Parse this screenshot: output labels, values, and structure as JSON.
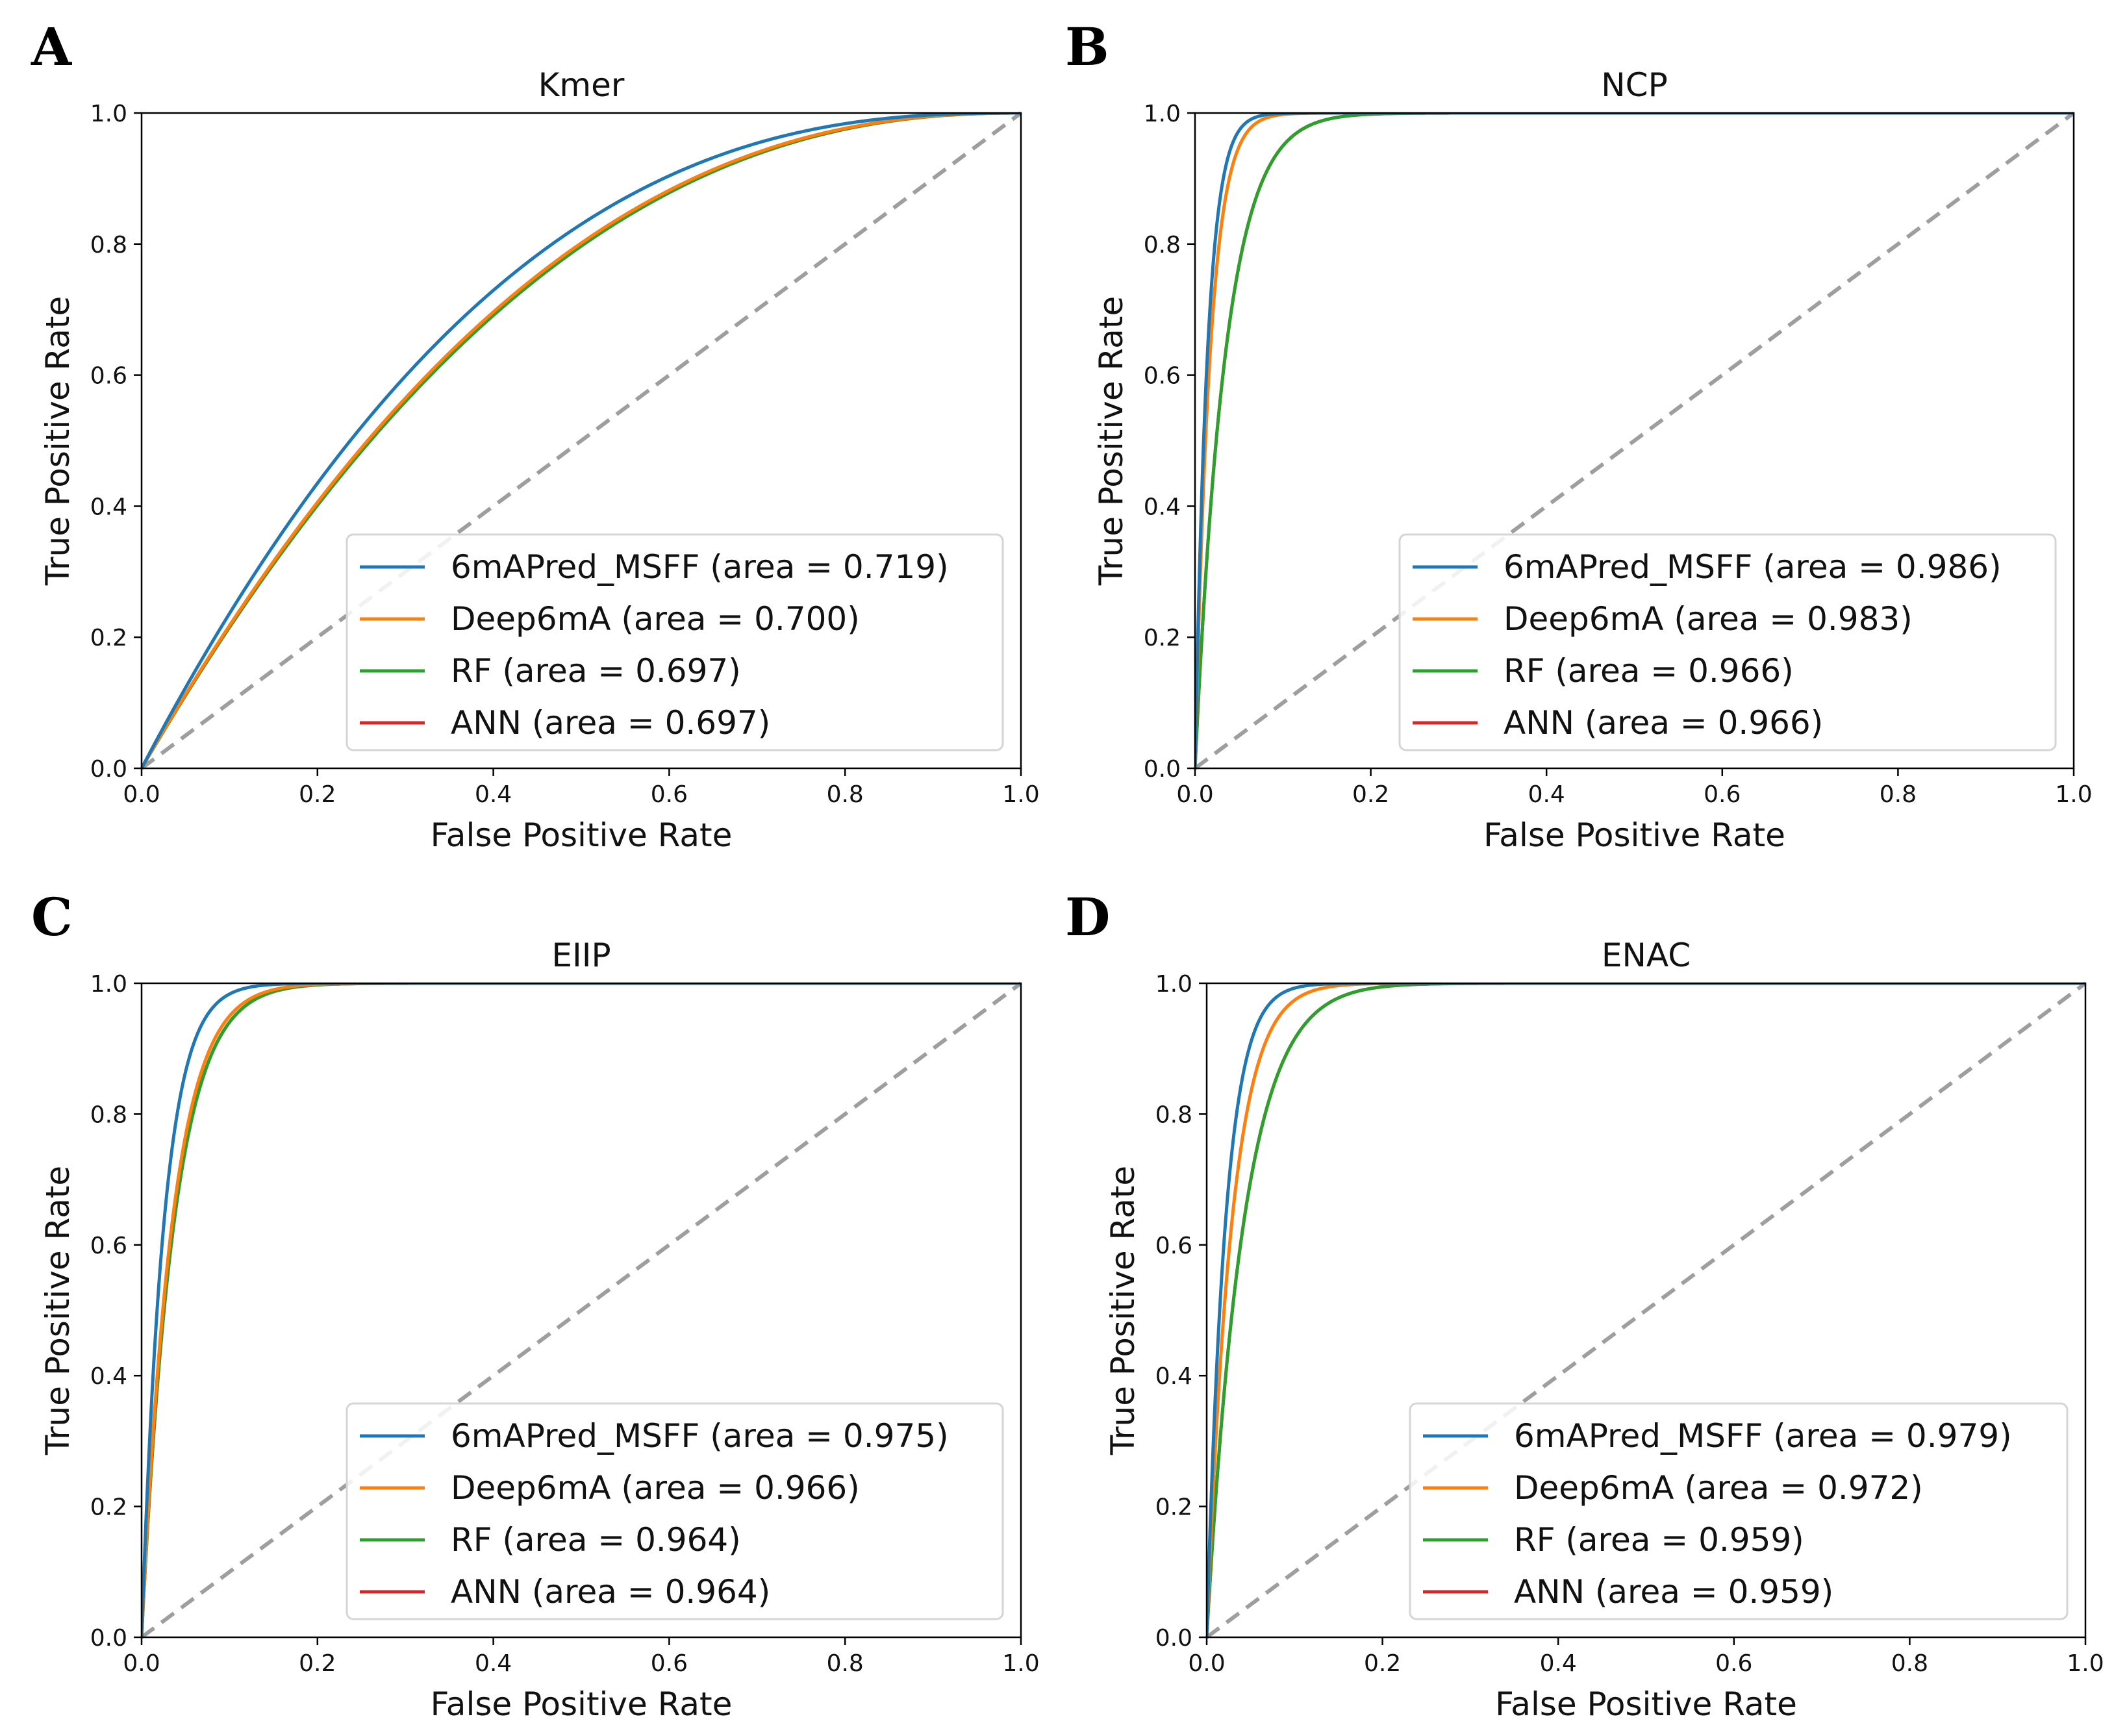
{
  "chart_data": [
    {
      "type": "line",
      "panel": "A",
      "title": "Kmer",
      "xlabel": "False Positive Rate",
      "ylabel": "True Positive Rate",
      "xlim": [
        0.0,
        1.0
      ],
      "ylim": [
        0.0,
        1.0
      ],
      "xticks": [
        "0.0",
        "0.2",
        "0.4",
        "0.6",
        "0.8",
        "1.0"
      ],
      "yticks": [
        "0.0",
        "0.2",
        "0.4",
        "0.6",
        "0.8",
        "1.0"
      ],
      "legend_position": "lower-right",
      "diagonal": true,
      "series": [
        {
          "name": "6mAPred_MSFF (area = 0.719)",
          "auc": 0.719,
          "color": "#1f77b4"
        },
        {
          "name": "Deep6mA (area = 0.700)",
          "auc": 0.7,
          "color": "#ff7f0e"
        },
        {
          "name": "RF (area = 0.697)",
          "auc": 0.697,
          "color": "#2ca02c"
        },
        {
          "name": "ANN (area = 0.697)",
          "auc": 0.697,
          "color": "#d62728"
        }
      ]
    },
    {
      "type": "line",
      "panel": "B",
      "title": "NCP",
      "xlabel": "False Positive Rate",
      "ylabel": "True Positive Rate",
      "xlim": [
        0.0,
        1.0
      ],
      "ylim": [
        0.0,
        1.0
      ],
      "xticks": [
        "0.0",
        "0.2",
        "0.4",
        "0.6",
        "0.8",
        "1.0"
      ],
      "yticks": [
        "0.0",
        "0.2",
        "0.4",
        "0.6",
        "0.8",
        "1.0"
      ],
      "legend_position": "lower-right",
      "diagonal": true,
      "series": [
        {
          "name": "6mAPred_MSFF (area = 0.986)",
          "auc": 0.986,
          "color": "#1f77b4"
        },
        {
          "name": "Deep6mA (area = 0.983)",
          "auc": 0.983,
          "color": "#ff7f0e"
        },
        {
          "name": "RF (area = 0.966)",
          "auc": 0.966,
          "color": "#2ca02c"
        },
        {
          "name": "ANN (area = 0.966)",
          "auc": 0.966,
          "color": "#d62728"
        }
      ]
    },
    {
      "type": "line",
      "panel": "C",
      "title": "EIIP",
      "xlabel": "False Positive Rate",
      "ylabel": "True Positive Rate",
      "xlim": [
        0.0,
        1.0
      ],
      "ylim": [
        0.0,
        1.0
      ],
      "xticks": [
        "0.0",
        "0.2",
        "0.4",
        "0.6",
        "0.8",
        "1.0"
      ],
      "yticks": [
        "0.0",
        "0.2",
        "0.4",
        "0.6",
        "0.8",
        "1.0"
      ],
      "legend_position": "lower-right",
      "diagonal": true,
      "series": [
        {
          "name": "6mAPred_MSFF (area = 0.975)",
          "auc": 0.975,
          "color": "#1f77b4"
        },
        {
          "name": "Deep6mA (area = 0.966)",
          "auc": 0.966,
          "color": "#ff7f0e"
        },
        {
          "name": "RF (area = 0.964)",
          "auc": 0.964,
          "color": "#2ca02c"
        },
        {
          "name": "ANN (area = 0.964)",
          "auc": 0.964,
          "color": "#d62728"
        }
      ]
    },
    {
      "type": "line",
      "panel": "D",
      "title": "ENAC",
      "xlabel": "False Positive Rate",
      "ylabel": "True Positive Rate",
      "xlim": [
        0.0,
        1.0
      ],
      "ylim": [
        0.0,
        1.0
      ],
      "xticks": [
        "0.0",
        "0.2",
        "0.4",
        "0.6",
        "0.8",
        "1.0"
      ],
      "yticks": [
        "0.0",
        "0.2",
        "0.4",
        "0.6",
        "0.8",
        "1.0"
      ],
      "legend_position": "lower-right",
      "diagonal": true,
      "series": [
        {
          "name": "6mAPred_MSFF (area = 0.979)",
          "auc": 0.979,
          "color": "#1f77b4"
        },
        {
          "name": "Deep6mA (area = 0.972)",
          "auc": 0.972,
          "color": "#ff7f0e"
        },
        {
          "name": "RF (area = 0.959)",
          "auc": 0.959,
          "color": "#2ca02c"
        },
        {
          "name": "ANN (area = 0.959)",
          "auc": 0.959,
          "color": "#d62728"
        }
      ]
    }
  ]
}
